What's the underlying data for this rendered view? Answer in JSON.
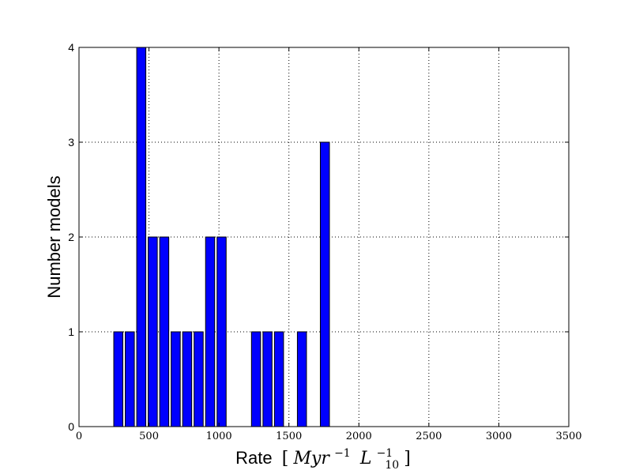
{
  "chart_data": {
    "type": "bar",
    "title": "",
    "xlabel_text": "Rate",
    "xlabel_math": {
      "open": "[",
      "myr": "Myr",
      "myr_exp": "−1",
      "l": "L",
      "l_sub": "10",
      "l_exp": "−1",
      "close": "]"
    },
    "ylabel": "Number models",
    "xlim": [
      0,
      3500
    ],
    "ylim": [
      0,
      4
    ],
    "x_ticks": [
      0,
      500,
      1000,
      1500,
      2000,
      2500,
      3000,
      3500
    ],
    "y_ticks": [
      0,
      1,
      2,
      3,
      4
    ],
    "grid": true,
    "bar_color": "#0000ff",
    "bars": [
      {
        "x0": 240,
        "x1": 322,
        "value": 1
      },
      {
        "x0": 322,
        "x1": 404,
        "value": 1
      },
      {
        "x0": 404,
        "x1": 486,
        "value": 4
      },
      {
        "x0": 486,
        "x1": 568,
        "value": 2
      },
      {
        "x0": 568,
        "x1": 650,
        "value": 2
      },
      {
        "x0": 650,
        "x1": 732,
        "value": 1
      },
      {
        "x0": 732,
        "x1": 814,
        "value": 1
      },
      {
        "x0": 814,
        "x1": 896,
        "value": 1
      },
      {
        "x0": 896,
        "x1": 978,
        "value": 2
      },
      {
        "x0": 978,
        "x1": 1060,
        "value": 2
      },
      {
        "x0": 1060,
        "x1": 1142,
        "value": 0
      },
      {
        "x0": 1142,
        "x1": 1224,
        "value": 0
      },
      {
        "x0": 1224,
        "x1": 1306,
        "value": 1
      },
      {
        "x0": 1306,
        "x1": 1388,
        "value": 1
      },
      {
        "x0": 1388,
        "x1": 1470,
        "value": 1
      },
      {
        "x0": 1470,
        "x1": 1552,
        "value": 0
      },
      {
        "x0": 1552,
        "x1": 1634,
        "value": 1
      },
      {
        "x0": 1634,
        "x1": 1716,
        "value": 0
      },
      {
        "x0": 1716,
        "x1": 1798,
        "value": 3
      }
    ]
  }
}
